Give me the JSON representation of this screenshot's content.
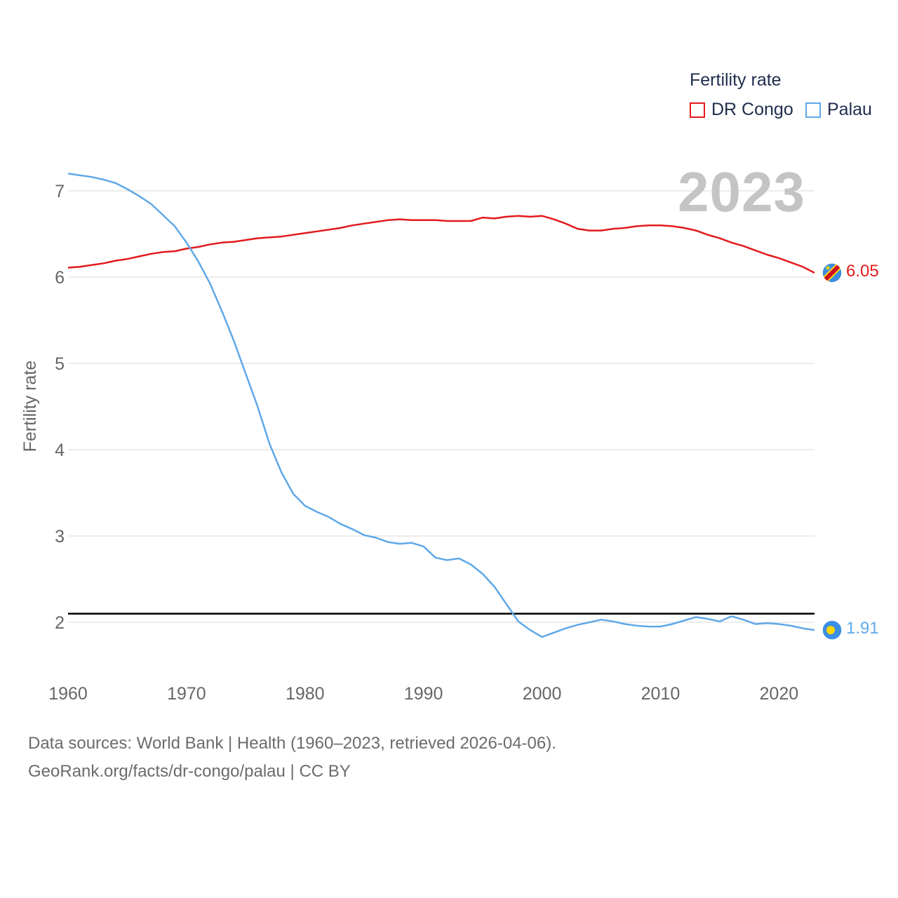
{
  "legend": {
    "title": "Fertility rate",
    "items": [
      {
        "label": "DR Congo",
        "color": "#e31a1c"
      },
      {
        "label": "Palau",
        "color": "#5fa8e8"
      }
    ]
  },
  "year_label": "2023",
  "end_labels": {
    "dr_congo": "6.05",
    "palau": "1.91"
  },
  "footer": {
    "line1": "Data sources: World Bank | Health (1960–2023, retrieved 2026-04-06).",
    "line2": "GeoRank.org/facts/dr-congo/palau | CC BY"
  },
  "chart_data": {
    "type": "line",
    "title": "Fertility rate",
    "xlabel": "",
    "ylabel": "Fertility rate",
    "xlim": [
      1960,
      2023
    ],
    "ylim": [
      1.3,
      7.2
    ],
    "x_ticks": [
      1960,
      1970,
      1980,
      1990,
      2000,
      2010,
      2020
    ],
    "y_ticks": [
      2,
      3,
      4,
      5,
      6,
      7
    ],
    "grid": true,
    "legend_position": "top-right",
    "reference_line": {
      "y": 2.1
    },
    "x": [
      1960,
      1961,
      1962,
      1963,
      1964,
      1965,
      1966,
      1967,
      1968,
      1969,
      1970,
      1971,
      1972,
      1973,
      1974,
      1975,
      1976,
      1977,
      1978,
      1979,
      1980,
      1981,
      1982,
      1983,
      1984,
      1985,
      1986,
      1987,
      1988,
      1989,
      1990,
      1991,
      1992,
      1993,
      1994,
      1995,
      1996,
      1997,
      1998,
      1999,
      2000,
      2001,
      2002,
      2003,
      2004,
      2005,
      2006,
      2007,
      2008,
      2009,
      2010,
      2011,
      2012,
      2013,
      2014,
      2015,
      2016,
      2017,
      2018,
      2019,
      2020,
      2021,
      2022,
      2023
    ],
    "series": [
      {
        "name": "DR Congo",
        "color": "#e31a1c",
        "values": [
          6.11,
          6.12,
          6.14,
          6.16,
          6.19,
          6.21,
          6.24,
          6.27,
          6.29,
          6.3,
          6.33,
          6.35,
          6.38,
          6.4,
          6.41,
          6.43,
          6.45,
          6.46,
          6.47,
          6.49,
          6.51,
          6.53,
          6.55,
          6.57,
          6.6,
          6.62,
          6.64,
          6.66,
          6.67,
          6.66,
          6.66,
          6.66,
          6.65,
          6.65,
          6.65,
          6.69,
          6.68,
          6.7,
          6.71,
          6.7,
          6.71,
          6.67,
          6.62,
          6.56,
          6.54,
          6.54,
          6.56,
          6.57,
          6.59,
          6.6,
          6.6,
          6.59,
          6.57,
          6.54,
          6.49,
          6.45,
          6.4,
          6.36,
          6.31,
          6.26,
          6.22,
          6.17,
          6.12,
          6.05
        ]
      },
      {
        "name": "Palau",
        "color": "#5fa8e8",
        "values": [
          7.2,
          7.18,
          7.16,
          7.13,
          7.09,
          7.02,
          6.94,
          6.85,
          6.72,
          6.59,
          6.4,
          6.18,
          5.92,
          5.6,
          5.26,
          4.88,
          4.5,
          4.07,
          3.74,
          3.49,
          3.35,
          3.28,
          3.22,
          3.14,
          3.08,
          3.01,
          2.98,
          2.93,
          2.91,
          2.92,
          2.88,
          2.75,
          2.72,
          2.74,
          2.67,
          2.56,
          2.41,
          2.21,
          2.01,
          1.91,
          1.83,
          1.88,
          1.93,
          1.97,
          2.0,
          2.03,
          2.01,
          1.98,
          1.96,
          1.95,
          1.95,
          1.98,
          2.02,
          2.06,
          2.04,
          2.01,
          2.07,
          2.03,
          1.98,
          1.99,
          1.98,
          1.96,
          1.93,
          1.91
        ]
      }
    ]
  }
}
